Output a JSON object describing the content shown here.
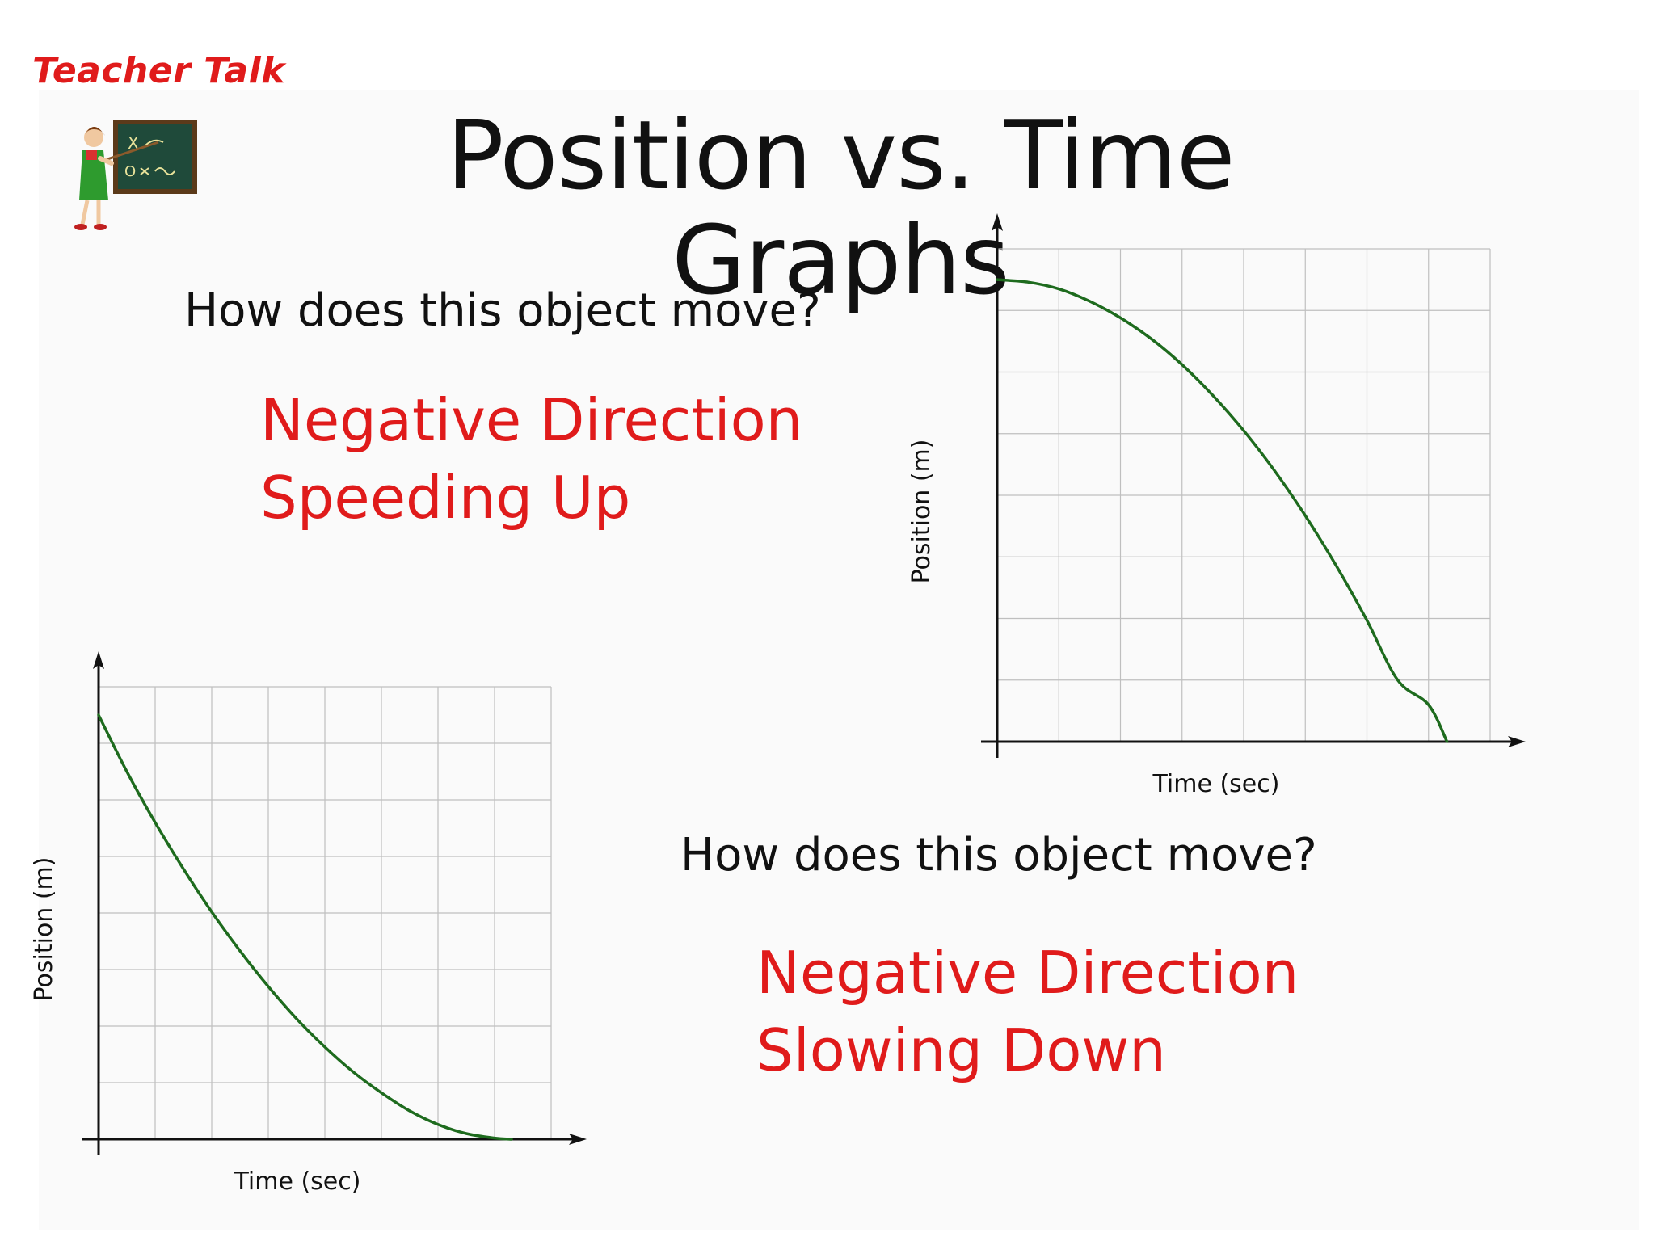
{
  "header": {
    "corner_label": "Teacher Talk",
    "title": "Position vs. Time Graphs"
  },
  "section1": {
    "question": "How does this object move?",
    "answer_line1": "Negative Direction",
    "answer_line2": "Speeding Up"
  },
  "section2": {
    "question": "How does this object move?",
    "answer_line1": "Negative Direction",
    "answer_line2": "Slowing Down"
  },
  "colors": {
    "answer": "#e01b1b",
    "curve": "#1e6b1e",
    "grid": "#bfbfbf",
    "axis": "#111111"
  },
  "chart_data": [
    {
      "type": "line",
      "xlabel": "Time (sec)",
      "ylabel": "Position (m)",
      "grid": true,
      "grid_cols": 8,
      "grid_rows": 8,
      "xlim": [
        0,
        8
      ],
      "ylim": [
        0,
        8
      ],
      "x": [
        0,
        0.5,
        1,
        1.5,
        2,
        2.5,
        3,
        3.5,
        4,
        4.5,
        5,
        5.5,
        6,
        6.5,
        7,
        7.3
      ],
      "values": [
        7.5,
        7.46,
        7.35,
        7.15,
        6.88,
        6.54,
        6.12,
        5.62,
        5.05,
        4.4,
        3.67,
        2.86,
        1.97,
        1.0,
        0.6,
        0.0
      ]
    },
    {
      "type": "line",
      "xlabel": "Time (sec)",
      "ylabel": "Position (m)",
      "grid": true,
      "grid_cols": 8,
      "grid_rows": 8,
      "xlim": [
        0,
        8
      ],
      "ylim": [
        0,
        8
      ],
      "x": [
        0,
        0.5,
        1,
        1.5,
        2,
        2.5,
        3,
        3.5,
        4,
        4.5,
        5,
        5.5,
        6,
        6.5,
        7,
        7.3
      ],
      "values": [
        7.5,
        6.5,
        5.6,
        4.78,
        4.02,
        3.33,
        2.7,
        2.13,
        1.63,
        1.19,
        0.82,
        0.5,
        0.26,
        0.1,
        0.02,
        0.0
      ]
    }
  ]
}
